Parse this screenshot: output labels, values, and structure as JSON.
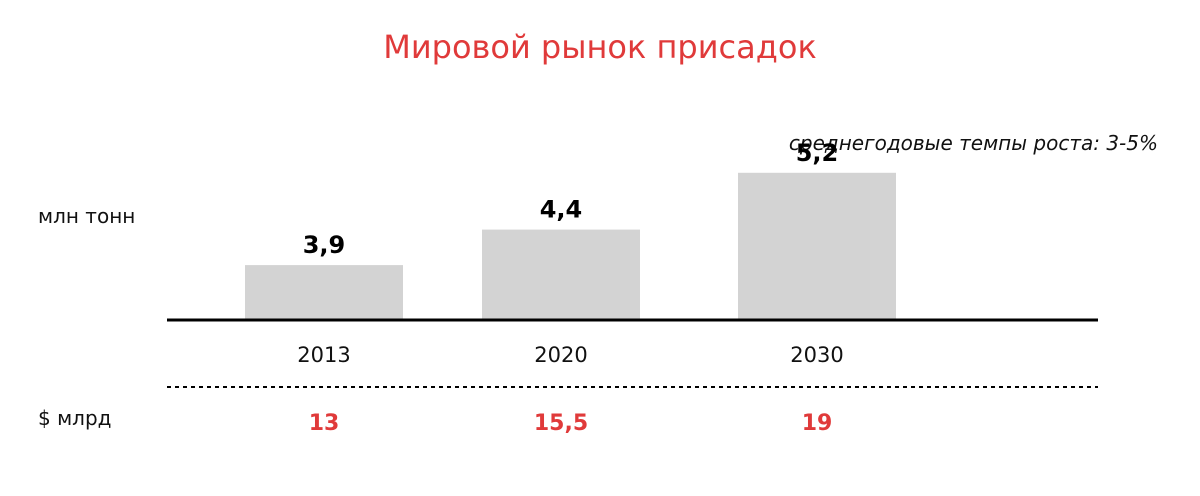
{
  "title": "Мировой рынок присадок",
  "subtitle": "среднегодовые темпы роста: 3-5%",
  "volume_label": "млн тонн",
  "money_label": "$ млрд",
  "colors": {
    "title": "#e03a3a",
    "bar": "#d3d3d3",
    "value_text": "#000000",
    "money_text": "#e03a3a",
    "axis": "#000000"
  },
  "chart_data": {
    "type": "bar",
    "title": "Мировой рынок присадок",
    "categories": [
      "2013",
      "2020",
      "2030"
    ],
    "series": [
      {
        "name": "млн тонн",
        "values": [
          3.9,
          4.4,
          5.2
        ],
        "labels": [
          "3,9",
          "4,4",
          "5,2"
        ]
      },
      {
        "name": "$ млрд",
        "values": [
          13,
          15.5,
          19
        ],
        "labels": [
          "13",
          "15,5",
          "19"
        ]
      }
    ],
    "grid": false,
    "legend": "none"
  }
}
